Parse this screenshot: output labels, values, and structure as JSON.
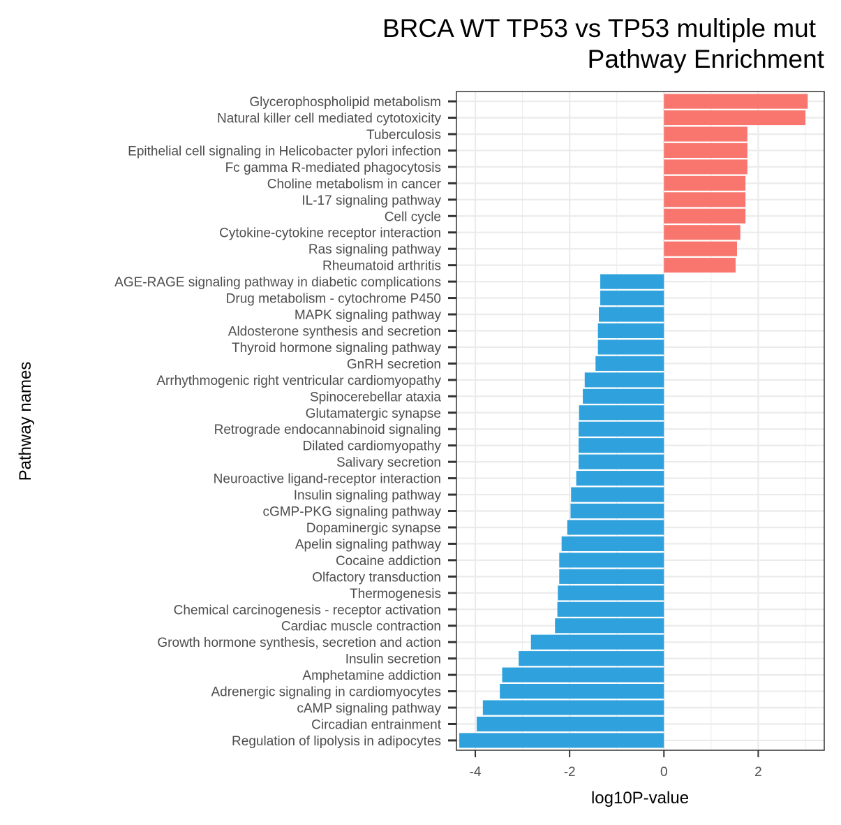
{
  "chart_data": {
    "type": "bar",
    "orientation": "horizontal",
    "title": "BRCA WT TP53 vs TP53 multiple mut",
    "subtitle": "Pathway Enrichment",
    "xlabel": "log10P-value",
    "ylabel": "Pathway names",
    "xlim": [
      -4.4,
      3.4
    ],
    "xticks": [
      -4,
      -2,
      0,
      2
    ],
    "xtick_labels": [
      "-4",
      "-2",
      "0",
      "2"
    ],
    "grid": true,
    "legend": "none",
    "colors": {
      "positive": "#F8766D",
      "negative": "#2FA1DD"
    },
    "categories": [
      "Glycerophospholipid metabolism",
      "Natural killer cell mediated cytotoxicity",
      "Tuberculosis",
      "Epithelial cell signaling in Helicobacter pylori infection",
      "Fc gamma R-mediated phagocytosis",
      "Choline metabolism in cancer",
      "IL-17 signaling pathway",
      "Cell cycle",
      "Cytokine-cytokine receptor interaction",
      "Ras signaling pathway",
      "Rheumatoid arthritis",
      "AGE-RAGE signaling pathway in diabetic complications",
      "Drug metabolism - cytochrome P450",
      "MAPK signaling pathway",
      "Aldosterone synthesis and secretion",
      "Thyroid hormone signaling pathway",
      "GnRH secretion",
      "Arrhythmogenic right ventricular cardiomyopathy",
      "Spinocerebellar ataxia",
      "Glutamatergic synapse",
      "Retrograde endocannabinoid signaling",
      "Dilated cardiomyopathy",
      "Salivary secretion",
      "Neuroactive ligand-receptor interaction",
      "Insulin signaling pathway",
      "cGMP-PKG signaling pathway",
      "Dopaminergic synapse",
      "Apelin signaling pathway",
      "Cocaine addiction",
      "Olfactory transduction",
      "Thermogenesis",
      "Chemical carcinogenesis - receptor activation",
      "Cardiac muscle contraction",
      "Growth hormone synthesis, secretion and action",
      "Insulin secretion",
      "Amphetamine addiction",
      "Adrenergic signaling in cardiomyocytes",
      "cAMP signaling pathway",
      "Circadian entrainment",
      "Regulation of lipolysis in adipocytes"
    ],
    "values": [
      3.05,
      3.0,
      1.77,
      1.77,
      1.77,
      1.73,
      1.73,
      1.73,
      1.62,
      1.55,
      1.52,
      -1.35,
      -1.35,
      -1.38,
      -1.4,
      -1.4,
      -1.45,
      -1.68,
      -1.72,
      -1.8,
      -1.81,
      -1.81,
      -1.81,
      -1.86,
      -1.97,
      -1.98,
      -2.05,
      -2.17,
      -2.22,
      -2.22,
      -2.25,
      -2.26,
      -2.31,
      -2.82,
      -3.08,
      -3.43,
      -3.48,
      -3.84,
      -3.97,
      -4.34
    ]
  }
}
